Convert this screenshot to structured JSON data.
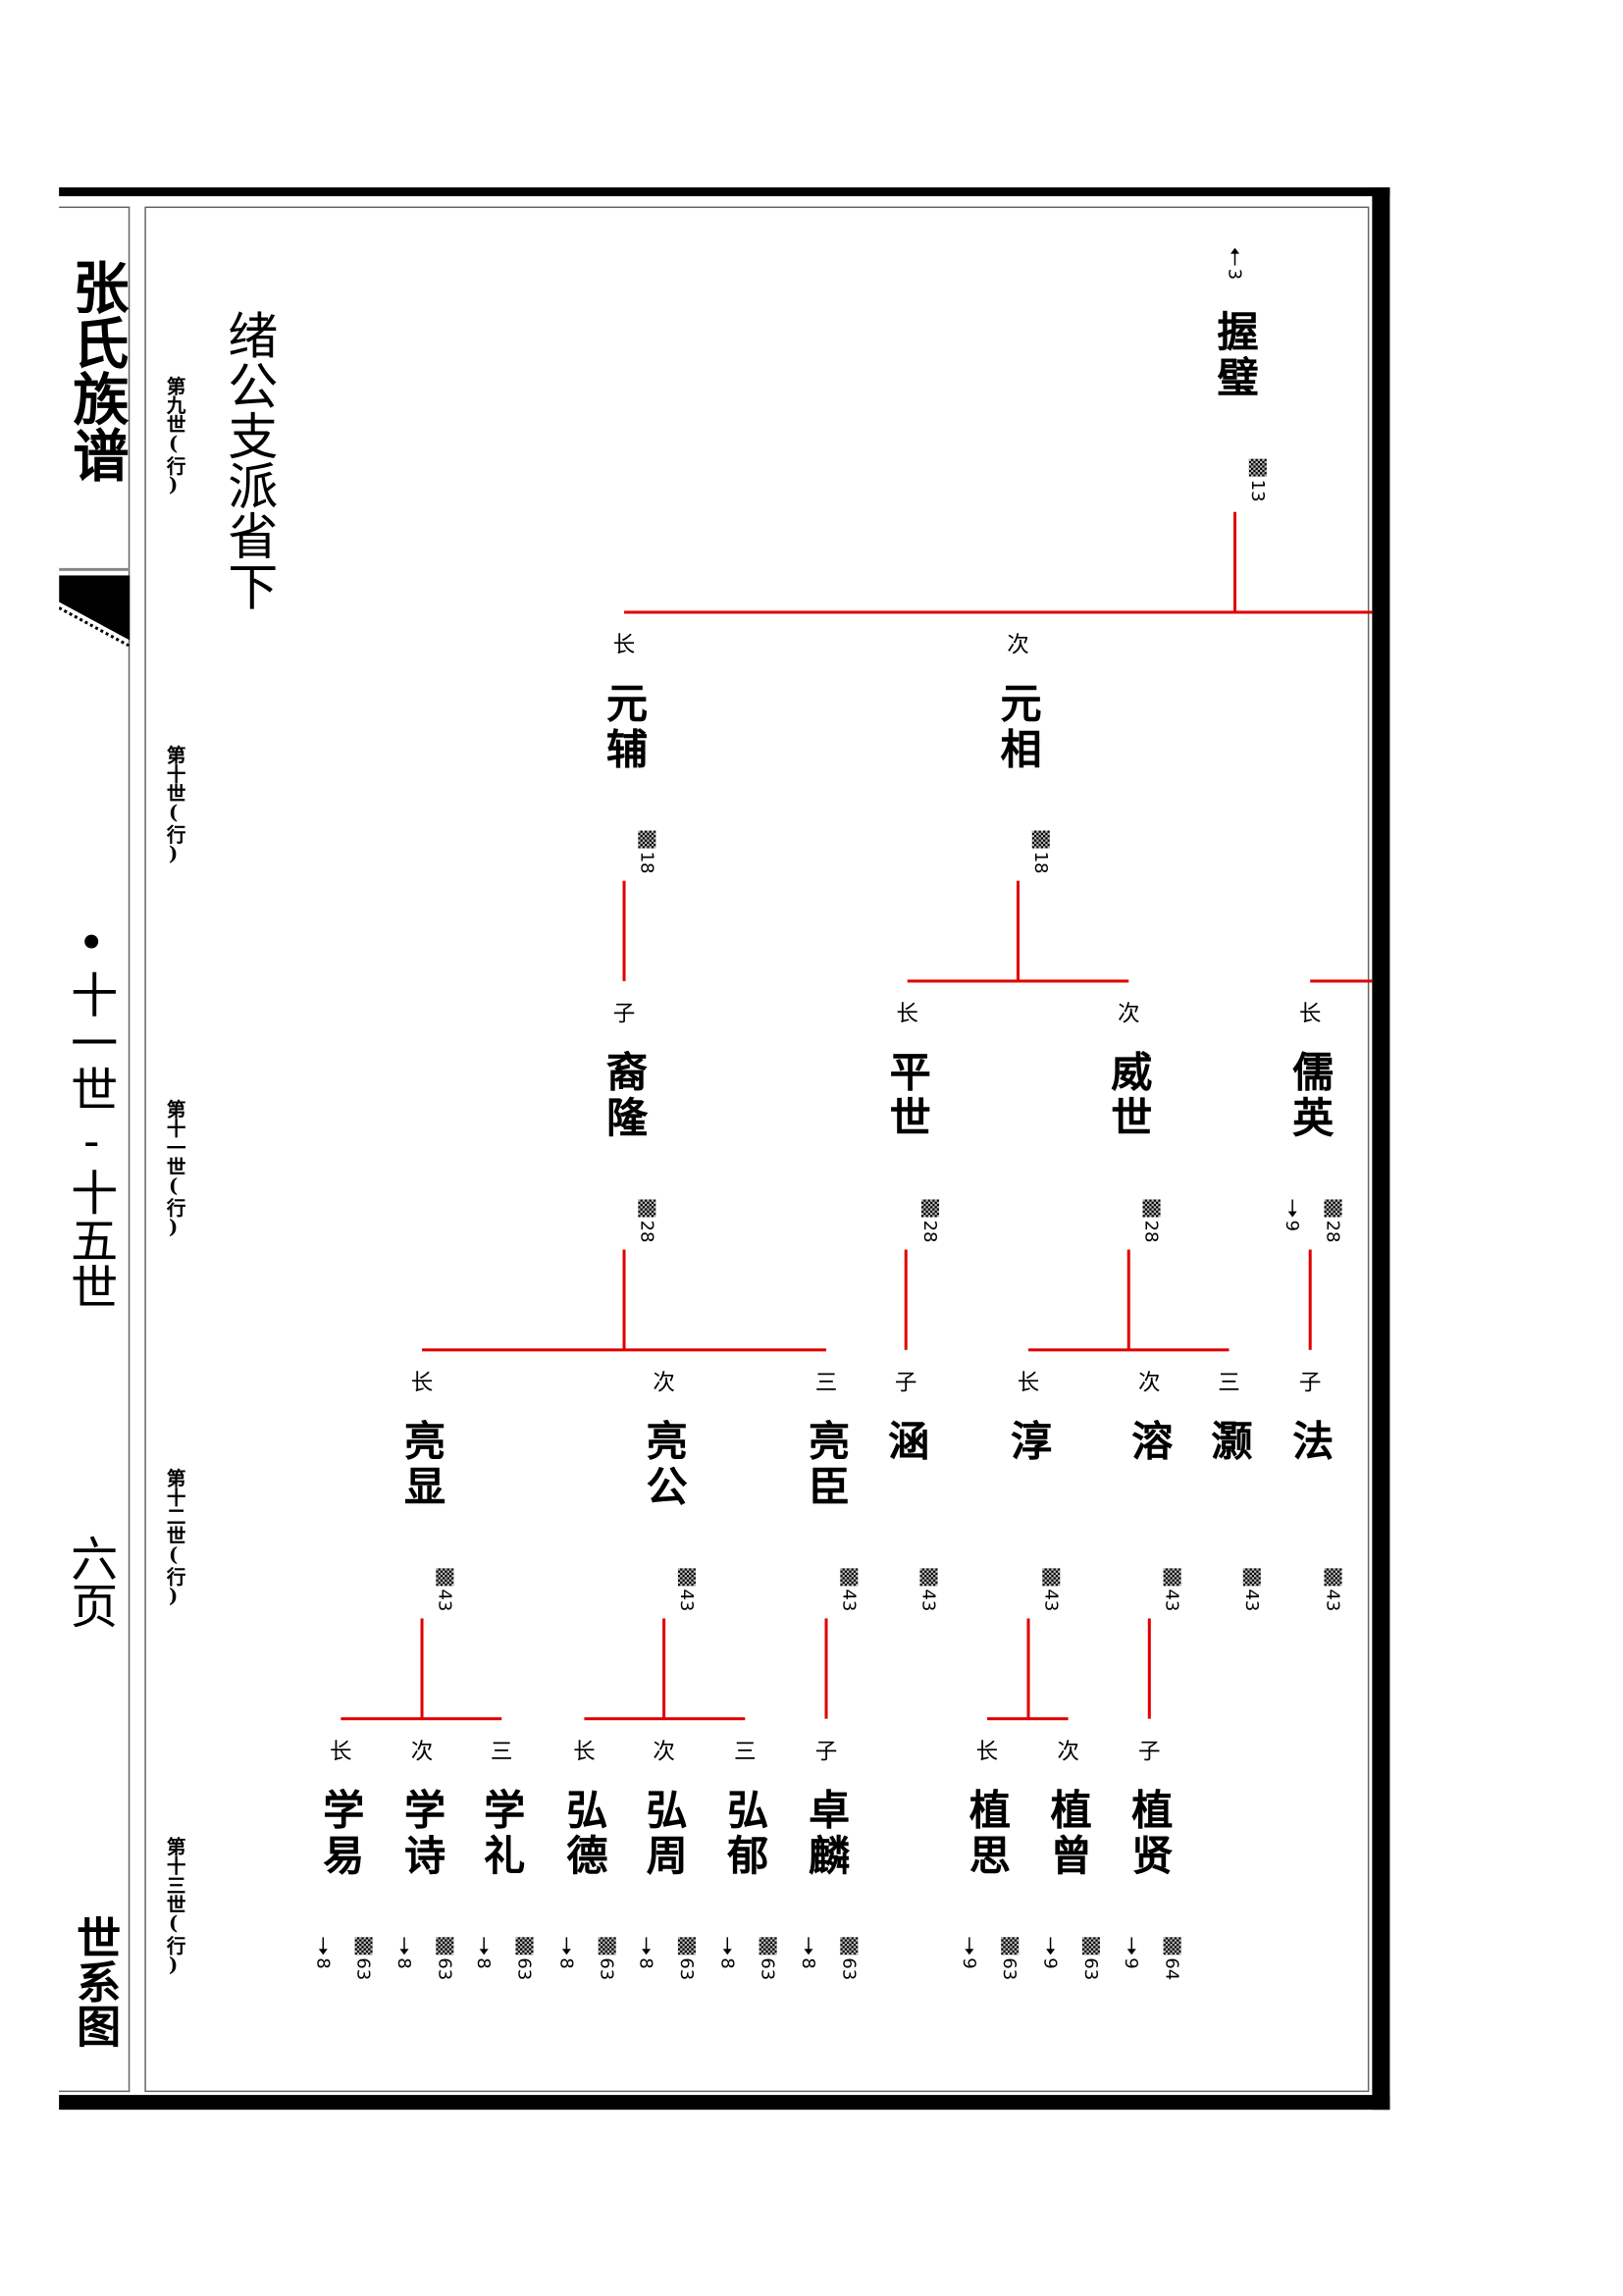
{
  "book_title": "张氏族谱",
  "generation_range": "•十一世-十五世",
  "page_label": "六页",
  "section_label": "世系图",
  "branch_title": "绪公支派省下",
  "generation_labels": [
    "第九世(行)",
    "第十世(行)",
    "第十一世(行)",
    "第十二世(行)",
    "第十三世(行)"
  ],
  "line_color": "#e00000",
  "marker_icon": "checkered-square-icon",
  "nodes": [
    {
      "rank": "",
      "name": "握璧",
      "up": "3",
      "code": "13"
    },
    {
      "rank": "长",
      "name": "元辅",
      "code": "18"
    },
    {
      "rank": "次",
      "name": "元相",
      "code": "18"
    },
    {
      "rank": "子",
      "name": "裔隆",
      "code": "28"
    },
    {
      "rank": "长",
      "name": "平世",
      "code": "28"
    },
    {
      "rank": "次",
      "name": "威世",
      "code": "28"
    },
    {
      "rank": "长",
      "name": "儒英",
      "code": "28",
      "down": "9"
    },
    {
      "rank": "长",
      "name": "亮显",
      "code": "43"
    },
    {
      "rank": "次",
      "name": "亮公",
      "code": "43"
    },
    {
      "rank": "三",
      "name": "亮臣",
      "code": "43"
    },
    {
      "rank": "子",
      "name": "涵",
      "code": "43"
    },
    {
      "rank": "长",
      "name": "淳",
      "code": "43"
    },
    {
      "rank": "次",
      "name": "溶",
      "code": "43"
    },
    {
      "rank": "三",
      "name": "灏",
      "code": "43"
    },
    {
      "rank": "子",
      "name": "法",
      "code": "43"
    },
    {
      "rank": "长",
      "name": "学易",
      "code": "63",
      "down": "8"
    },
    {
      "rank": "次",
      "name": "学诗",
      "code": "63",
      "down": "8"
    },
    {
      "rank": "三",
      "name": "学礼",
      "code": "63",
      "down": "8"
    },
    {
      "rank": "长",
      "name": "弘德",
      "code": "63",
      "down": "8"
    },
    {
      "rank": "次",
      "name": "弘周",
      "code": "63",
      "down": "8"
    },
    {
      "rank": "三",
      "name": "弘郁",
      "code": "63",
      "down": "8"
    },
    {
      "rank": "子",
      "name": "卓麟",
      "code": "63",
      "down": "8"
    },
    {
      "rank": "长",
      "name": "植思",
      "code": "63",
      "down": "9"
    },
    {
      "rank": "次",
      "name": "植曾",
      "code": "63",
      "down": "9"
    },
    {
      "rank": "子",
      "name": "植贤",
      "code": "64",
      "down": "9"
    }
  ]
}
